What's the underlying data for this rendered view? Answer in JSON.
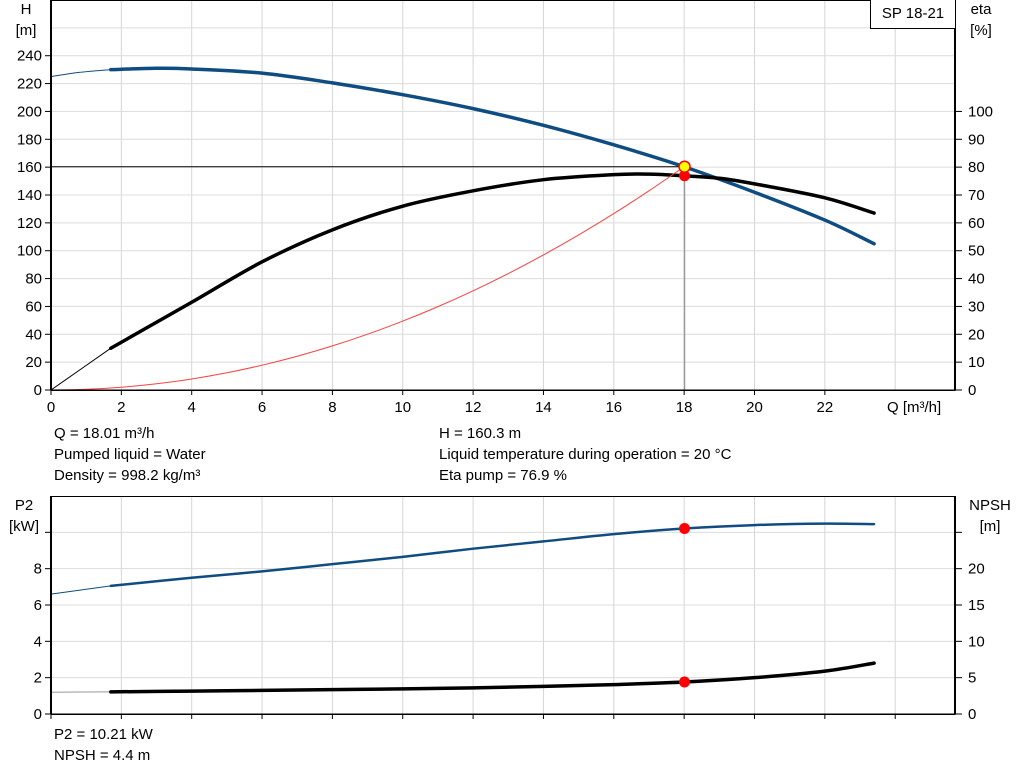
{
  "model_label": "SP 18-21",
  "chart_data": [
    {
      "type": "line",
      "title": "",
      "xlabel": "Q [m³/h]",
      "ylabel_left": {
        "name": "H",
        "unit": "[m]"
      },
      "ylabel_right": {
        "name": "eta",
        "unit": "[%]"
      },
      "xlim": [
        0,
        25.7
      ],
      "ylim_left": [
        0,
        280
      ],
      "ylim_right": [
        0,
        140
      ],
      "x_ticks": [
        0,
        2,
        4,
        6,
        8,
        10,
        12,
        14,
        16,
        18,
        20,
        22
      ],
      "y_ticks_left": [
        0,
        20,
        40,
        60,
        80,
        100,
        120,
        140,
        160,
        180,
        200,
        220,
        240
      ],
      "y_ticks_right": [
        0,
        10,
        20,
        30,
        40,
        50,
        60,
        70,
        80,
        90,
        100
      ],
      "grid": true,
      "series": [
        {
          "key": "head",
          "axis": "left",
          "color": "#0f4c81",
          "extrapolated": {
            "x": [
              0,
              0.8,
              1.7
            ],
            "y": [
              225,
              228,
              230
            ]
          },
          "x": [
            1.7,
            3,
            4,
            6,
            8,
            10,
            12,
            14,
            16,
            18,
            20,
            22,
            23.4
          ],
          "y": [
            230,
            231,
            230.5,
            227.5,
            220.5,
            212,
            202,
            190,
            176,
            160.3,
            142,
            122,
            105
          ]
        },
        {
          "key": "eta",
          "axis": "right",
          "color": "#000000",
          "extrapolated": {
            "x": [
              0,
              1.7
            ],
            "y": [
              0,
              15
            ]
          },
          "x": [
            1.7,
            4,
            6,
            8,
            10,
            12,
            14,
            16,
            17,
            18,
            19,
            20,
            22,
            23.4
          ],
          "y": [
            15,
            31.5,
            46,
            57.5,
            66,
            71.5,
            75.5,
            77.3,
            77.5,
            76.9,
            76,
            74,
            69,
            63.5
          ]
        },
        {
          "key": "system-curve",
          "axis": "left",
          "color": "#ff4040",
          "formula": "H = 160.3 * (Q/18)^2",
          "x_range": [
            0,
            18
          ]
        }
      ],
      "duty_point": {
        "Q": 18.01,
        "H": 160.3,
        "eta": 76.9
      }
    },
    {
      "type": "line",
      "title": "",
      "ylabel_left": {
        "name": "P2",
        "unit": "[kW]"
      },
      "ylabel_right": {
        "name": "NPSH",
        "unit": "[m]"
      },
      "xlim": [
        0,
        25.7
      ],
      "ylim_left": [
        0,
        12
      ],
      "ylim_right": [
        0,
        30
      ],
      "x_ticks": [
        0,
        2,
        4,
        6,
        8,
        10,
        12,
        14,
        16,
        18,
        20,
        22,
        24
      ],
      "y_ticks_left": [
        0,
        2,
        4,
        6,
        8,
        10
      ],
      "y_tick_labels_left": [
        "0",
        "2",
        "4",
        "6",
        "8",
        ""
      ],
      "y_ticks_right": [
        0,
        5,
        10,
        15,
        20,
        25
      ],
      "y_tick_labels_right": [
        "0",
        "5",
        "10",
        "15",
        "20",
        ""
      ],
      "grid": true,
      "series": [
        {
          "key": "p2",
          "axis": "left",
          "color": "#0f4c81",
          "extrapolated": {
            "x": [
              0,
              1.7
            ],
            "y": [
              6.6,
              7.05
            ]
          },
          "x": [
            1.7,
            4,
            6,
            8,
            10,
            12,
            14,
            16,
            18,
            20,
            22,
            23.4
          ],
          "y": [
            7.05,
            7.5,
            7.85,
            8.25,
            8.65,
            9.1,
            9.5,
            9.9,
            10.21,
            10.4,
            10.48,
            10.45
          ]
        },
        {
          "key": "npsh",
          "axis": "right",
          "color": "#000000",
          "extrapolated": {
            "x": [
              0,
              1.7
            ],
            "y": [
              3.0,
              3.05
            ]
          },
          "x": [
            1.7,
            4,
            6,
            8,
            10,
            12,
            14,
            16,
            18,
            20,
            22,
            23.4
          ],
          "y": [
            3.05,
            3.15,
            3.25,
            3.35,
            3.45,
            3.6,
            3.8,
            4.05,
            4.4,
            5.0,
            5.9,
            7.0
          ]
        }
      ],
      "duty_point": {
        "Q": 18.01,
        "P2": 10.21,
        "NPSH": 4.4
      }
    }
  ],
  "info_top": {
    "q": "Q = 18.01 m³/h",
    "liquid": "Pumped liquid = Water",
    "density": "Density = 998.2 kg/m³",
    "h": "H = 160.3 m",
    "temp": "Liquid temperature during operation = 20 °C",
    "eta": "Eta pump = 76.9 %"
  },
  "info_bottom": {
    "p2": "P2 = 10.21 kW",
    "npsh": "NPSH = 4.4 m"
  }
}
